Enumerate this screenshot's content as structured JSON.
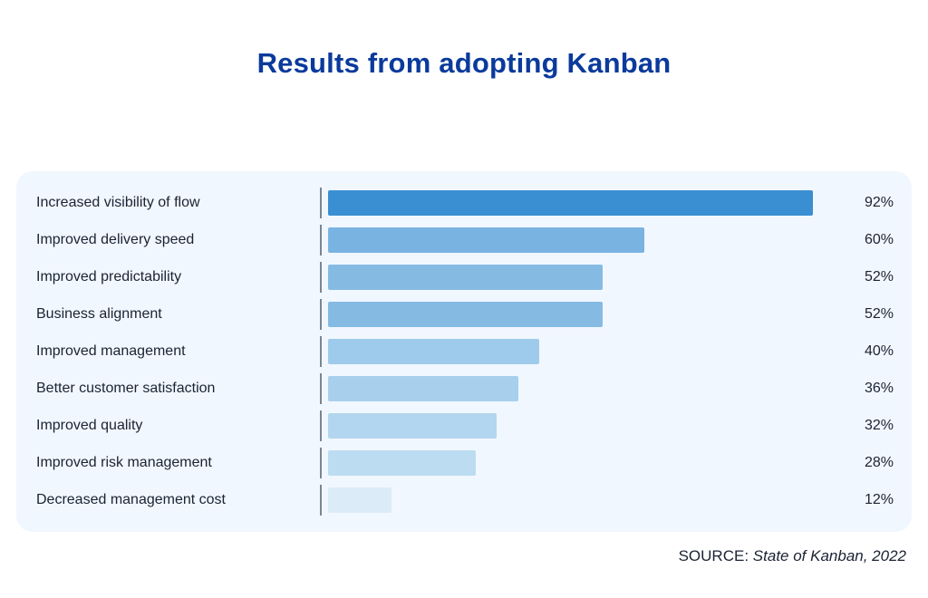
{
  "title": "Results from adopting Kanban",
  "source": {
    "prefix": "SOURCE:",
    "text": "State of Kanban, 2022"
  },
  "chart_data": {
    "type": "bar",
    "orientation": "horizontal",
    "categories": [
      "Increased visibility of flow",
      "Improved delivery speed",
      "Improved predictability",
      "Business alignment",
      "Improved management",
      "Better customer satisfaction",
      "Improved quality",
      "Improved risk management",
      "Decreased management cost"
    ],
    "values": [
      92,
      60,
      52,
      52,
      40,
      36,
      32,
      28,
      12
    ],
    "value_labels": [
      "92%",
      "60%",
      "52%",
      "52%",
      "40%",
      "36%",
      "32%",
      "28%",
      "12%"
    ],
    "unit": "%",
    "xlim": [
      0,
      100
    ],
    "grid": false,
    "legend": "none",
    "bar_colors": [
      "#3a8fd2",
      "#79b3e1",
      "#85bbe3",
      "#85bbe3",
      "#9ecbeb",
      "#a8d0ed",
      "#b2d6ef",
      "#bcdcf1",
      "#dbebf8"
    ]
  }
}
